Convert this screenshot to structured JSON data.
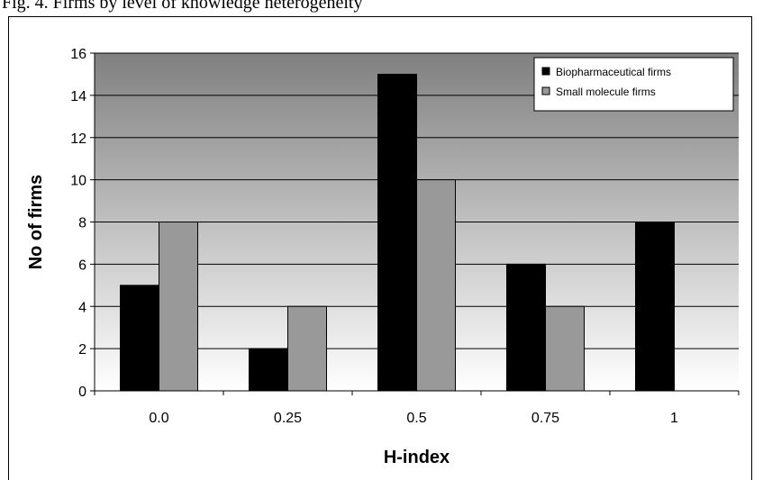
{
  "caption": "Fig. 4. Firms by level of knowledge heterogeneity",
  "chart_data": {
    "type": "bar",
    "title": "",
    "xlabel": "H-index",
    "ylabel": "No of firms",
    "categories": [
      "0.0",
      "0.25",
      "0.5",
      "0.75",
      "1"
    ],
    "series": [
      {
        "name": "Biopharmaceutical firms",
        "values": [
          5,
          2,
          15,
          6,
          8
        ],
        "color": "#000000"
      },
      {
        "name": "Small molecule firms",
        "values": [
          8,
          4,
          10,
          4,
          0
        ],
        "color": "#999999"
      }
    ],
    "ylim": [
      0,
      16
    ],
    "yticks": [
      0,
      2,
      4,
      6,
      8,
      10,
      12,
      14,
      16
    ],
    "grid": true,
    "legend": "top-right",
    "background": "gradient-gray"
  }
}
